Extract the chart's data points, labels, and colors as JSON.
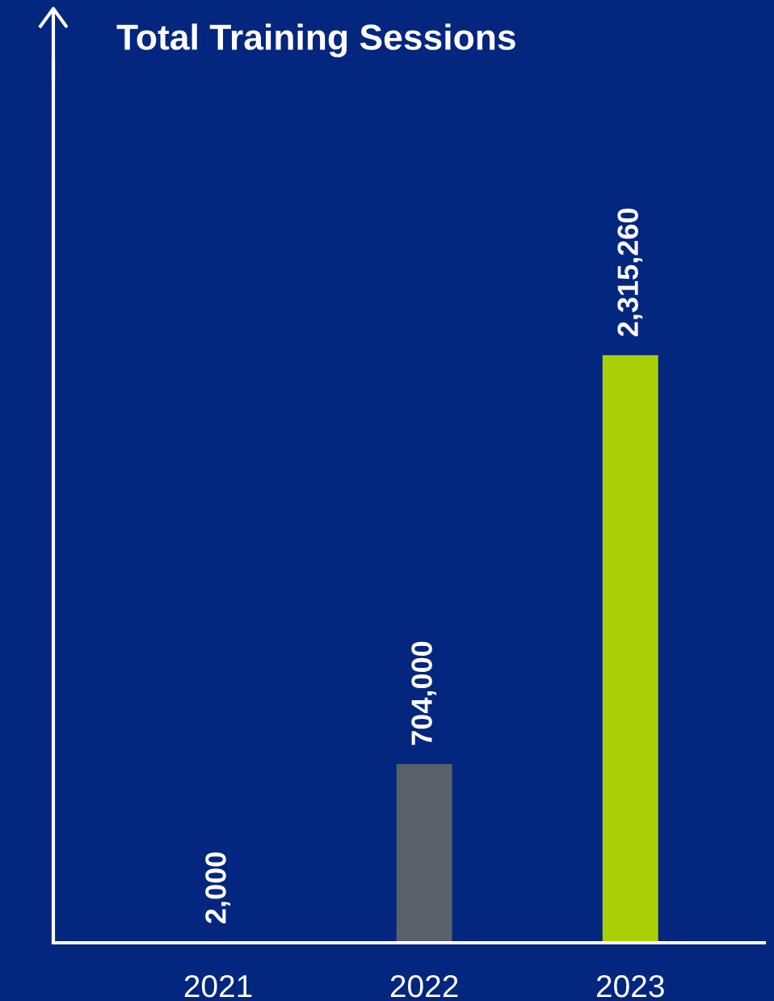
{
  "chart_data": {
    "type": "bar",
    "title": "Total Training Sessions",
    "categories": [
      "2021",
      "2022",
      "2023"
    ],
    "values": [
      2000,
      704000,
      2315260
    ],
    "value_labels": [
      "2,000",
      "704,000",
      "2,315,260"
    ],
    "colors": [
      "#c3d2e0",
      "#5b6169",
      "#abcf06"
    ],
    "grid": false
  }
}
